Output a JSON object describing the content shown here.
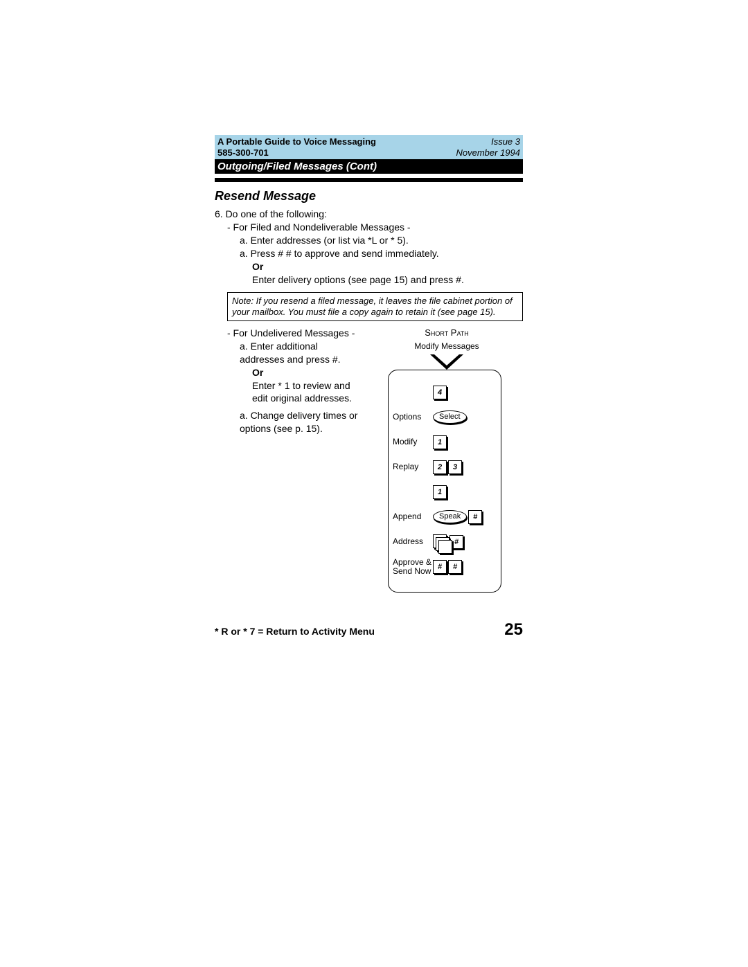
{
  "header": {
    "title": "A Portable Guide to Voice Messaging",
    "doc_number": "585-300-701",
    "issue": "Issue 3",
    "date": "November 1994"
  },
  "section_bar": "Outgoing/Filed Messages (Cont)",
  "section_title": "Resend Message",
  "step6_intro": "6.  Do one of the following:",
  "filed_heading": "- For Filed and Nondeliverable Messages -",
  "filed_a": "a.  Enter addresses (or list via *L or * 5).",
  "filed_b": "a.  Press # # to approve and send immediately.",
  "or": "Or",
  "filed_or_line": "Enter delivery options (see page 15) and press #.",
  "note": "Note: If you resend a filed message, it leaves the file cabinet portion of your mailbox.  You must file a copy again to retain it (see page 15).",
  "undeliv_heading": "- For Undelivered Messages -",
  "undeliv_a": "a.  Enter additional addresses and press #.",
  "undeliv_or": "Enter * 1 to review and edit original addresses.",
  "undeliv_b": "a.  Change delivery times or options (see p. 15).",
  "short_path": {
    "title": "Short Path",
    "subtitle": "Modify Messages",
    "rows": [
      {
        "label": "",
        "keys": [
          {
            "type": "key",
            "t": "4"
          }
        ]
      },
      {
        "label": "Options",
        "keys": [
          {
            "type": "oval",
            "t": "Select"
          }
        ]
      },
      {
        "label": "Modify",
        "keys": [
          {
            "type": "key",
            "t": "1"
          }
        ]
      },
      {
        "label": "Replay",
        "keys": [
          {
            "type": "key",
            "t": "2"
          },
          {
            "type": "key",
            "t": "3"
          }
        ]
      },
      {
        "label": "",
        "keys": [
          {
            "type": "key",
            "t": "1"
          }
        ]
      },
      {
        "label": "Append",
        "keys": [
          {
            "type": "oval",
            "t": "Speak"
          },
          {
            "type": "key",
            "t": "#"
          }
        ]
      },
      {
        "label": "Address",
        "keys": [
          {
            "type": "stack"
          },
          {
            "type": "key",
            "t": "#"
          }
        ]
      },
      {
        "label": "Approve & Send Now",
        "keys": [
          {
            "type": "key",
            "t": "#"
          },
          {
            "type": "key",
            "t": "#"
          }
        ]
      }
    ]
  },
  "footer": {
    "return_text": "* R or * 7 = Return to Activity Menu",
    "page": "25"
  },
  "colors": {
    "header_bg": "#a7d4e8",
    "black": "#000000",
    "white": "#ffffff"
  }
}
